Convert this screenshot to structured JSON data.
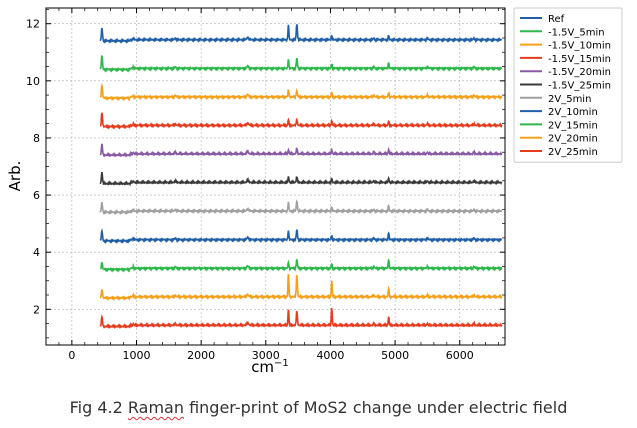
{
  "chart_data": {
    "type": "line",
    "title": "",
    "xlabel": "cm",
    "xlabel_sup": "−1",
    "ylabel": "Arb.",
    "xlim": [
      -400,
      6700
    ],
    "ylim": [
      0.75,
      12.55
    ],
    "xticks": [
      0,
      1000,
      2000,
      3000,
      4000,
      5000,
      6000
    ],
    "yticks": [
      2,
      4,
      6,
      8,
      10,
      12
    ],
    "grid": true,
    "legend_position": "outside-right",
    "x_range": [
      440,
      6650
    ],
    "peaks": [
      {
        "x": 465,
        "width": 12
      },
      {
        "x": 950,
        "width": 8
      },
      {
        "x": 1600,
        "width": 15
      },
      {
        "x": 2720,
        "width": 20
      },
      {
        "x": 3350,
        "width": 10
      },
      {
        "x": 3480,
        "width": 12
      },
      {
        "x": 4020,
        "width": 10
      },
      {
        "x": 4670,
        "width": 12
      },
      {
        "x": 4900,
        "width": 10
      },
      {
        "x": 5500,
        "width": 12
      },
      {
        "x": 6220,
        "width": 12
      }
    ],
    "series": [
      {
        "name": "Ref",
        "color": "#1f5fa8",
        "baseline": 11.4,
        "peak_heights": [
          0.45,
          0.06,
          0.05,
          0.08,
          0.5,
          0.55,
          0.15,
          0.06,
          0.15,
          0.06,
          0.06
        ]
      },
      {
        "name": "-1.5V_5min",
        "color": "#2db84a",
        "baseline": 10.4,
        "peak_heights": [
          0.5,
          0.06,
          0.05,
          0.08,
          0.3,
          0.35,
          0.15,
          0.06,
          0.2,
          0.06,
          0.06
        ]
      },
      {
        "name": "-1.5V_10min",
        "color": "#f5a01a",
        "baseline": 9.4,
        "peak_heights": [
          0.45,
          0.06,
          0.05,
          0.08,
          0.25,
          0.2,
          0.15,
          0.06,
          0.15,
          0.06,
          0.06
        ]
      },
      {
        "name": "-1.5V_15min",
        "color": "#e63b1f",
        "baseline": 8.4,
        "peak_heights": [
          0.5,
          0.06,
          0.05,
          0.08,
          0.2,
          0.2,
          0.15,
          0.06,
          0.15,
          0.06,
          0.06
        ]
      },
      {
        "name": "-1.5V_20min",
        "color": "#8a5aa6",
        "baseline": 7.4,
        "peak_heights": [
          0.4,
          0.06,
          0.05,
          0.08,
          0.15,
          0.2,
          0.15,
          0.06,
          0.15,
          0.06,
          0.06
        ]
      },
      {
        "name": "-1.5V_25min",
        "color": "#3a3a3a",
        "baseline": 6.4,
        "peak_heights": [
          0.4,
          0.06,
          0.05,
          0.08,
          0.2,
          0.2,
          0.15,
          0.06,
          0.15,
          0.06,
          0.06
        ]
      },
      {
        "name": "2V_5min",
        "color": "#a0a0a0",
        "baseline": 5.4,
        "peak_heights": [
          0.35,
          0.06,
          0.05,
          0.08,
          0.3,
          0.35,
          0.15,
          0.06,
          0.2,
          0.06,
          0.06
        ]
      },
      {
        "name": "2V_10min",
        "color": "#1f5fa8",
        "baseline": 4.4,
        "peak_heights": [
          0.35,
          0.06,
          0.05,
          0.08,
          0.3,
          0.35,
          0.15,
          0.06,
          0.25,
          0.06,
          0.06
        ]
      },
      {
        "name": "2V_15min",
        "color": "#2db84a",
        "baseline": 3.4,
        "peak_heights": [
          0.25,
          0.06,
          0.05,
          0.08,
          0.2,
          0.3,
          0.15,
          0.06,
          0.3,
          0.06,
          0.06
        ]
      },
      {
        "name": "2V_20min",
        "color": "#f5a01a",
        "baseline": 2.4,
        "peak_heights": [
          0.3,
          0.06,
          0.05,
          0.08,
          0.8,
          0.75,
          0.55,
          0.06,
          0.3,
          0.06,
          0.06
        ]
      },
      {
        "name": "2V_25min",
        "color": "#e63b1f",
        "baseline": 1.4,
        "peak_heights": [
          0.35,
          0.06,
          0.05,
          0.08,
          0.55,
          0.5,
          0.6,
          0.06,
          0.3,
          0.06,
          0.06
        ]
      }
    ]
  },
  "caption": {
    "prefix": "Fig 4.2 ",
    "underlined": "Raman",
    "suffix": " finger-print of MoS2 change under electric field"
  }
}
